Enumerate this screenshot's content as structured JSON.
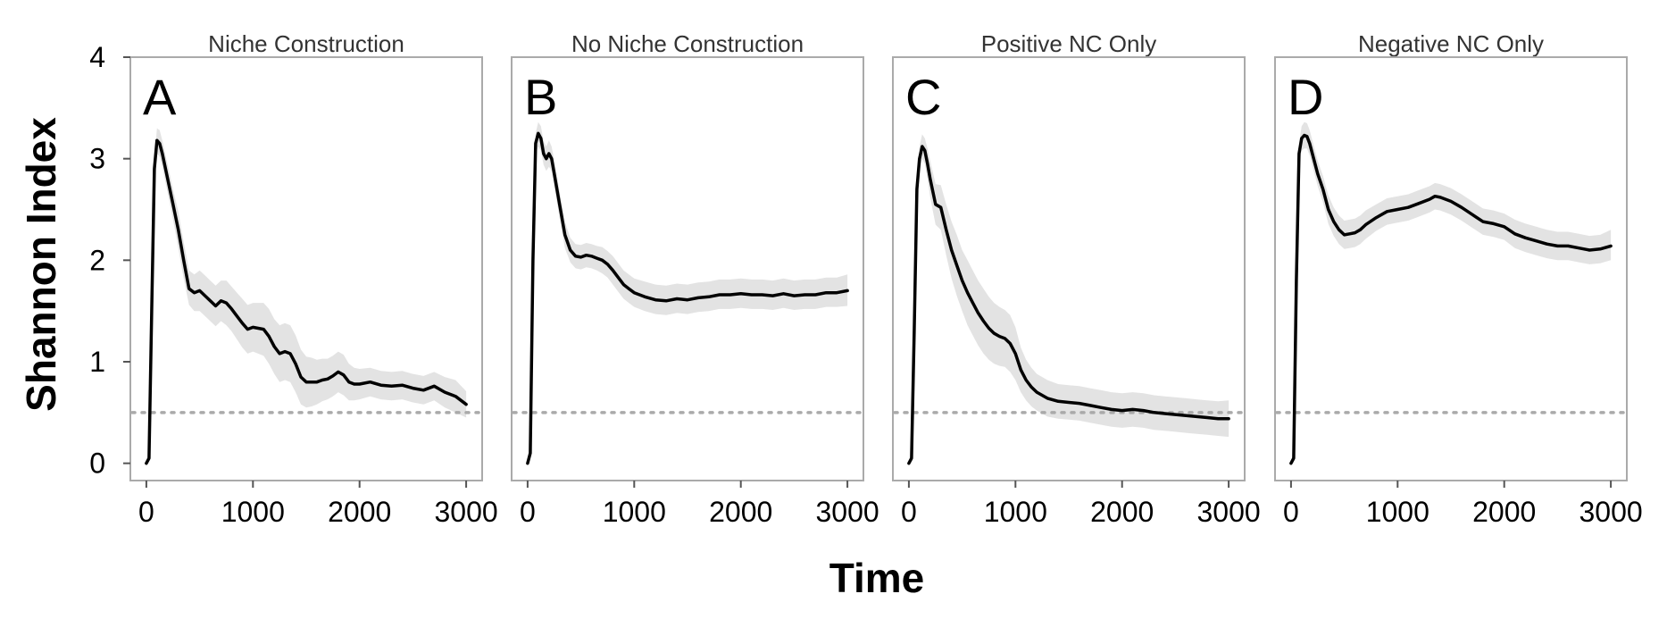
{
  "chart_data": {
    "type": "line",
    "xlabel": "Time",
    "ylabel": "Shannon Index",
    "xlim": [
      -150,
      3150
    ],
    "ylim": [
      -0.17,
      4.0
    ],
    "xticks": [
      0,
      1000,
      2000,
      3000
    ],
    "yticks": [
      0,
      1,
      2,
      3,
      4
    ],
    "reference_line_y": 0.5,
    "band_color": "#e3e3e3",
    "line_color": "#000000",
    "panels": [
      {
        "letter": "A",
        "title": "Niche Construction",
        "show_yticks": true,
        "series": {
          "x": [
            0,
            25,
            50,
            75,
            100,
            125,
            150,
            200,
            250,
            300,
            350,
            400,
            450,
            500,
            550,
            600,
            650,
            700,
            750,
            800,
            850,
            900,
            950,
            1000,
            1100,
            1150,
            1200,
            1250,
            1300,
            1350,
            1400,
            1450,
            1500,
            1550,
            1600,
            1650,
            1700,
            1750,
            1800,
            1850,
            1900,
            1950,
            2000,
            2100,
            2200,
            2300,
            2400,
            2500,
            2600,
            2700,
            2800,
            2900,
            3000
          ],
          "mean": [
            0.0,
            0.05,
            1.5,
            2.9,
            3.18,
            3.15,
            3.05,
            2.8,
            2.55,
            2.3,
            2.0,
            1.72,
            1.68,
            1.7,
            1.65,
            1.6,
            1.55,
            1.6,
            1.58,
            1.52,
            1.45,
            1.38,
            1.32,
            1.34,
            1.32,
            1.25,
            1.15,
            1.08,
            1.1,
            1.08,
            0.98,
            0.85,
            0.8,
            0.8,
            0.8,
            0.82,
            0.83,
            0.86,
            0.9,
            0.87,
            0.8,
            0.78,
            0.78,
            0.8,
            0.77,
            0.76,
            0.77,
            0.74,
            0.72,
            0.76,
            0.7,
            0.66,
            0.58
          ],
          "lower": [
            0.0,
            0.03,
            1.4,
            2.8,
            3.05,
            3.02,
            2.92,
            2.66,
            2.4,
            2.12,
            1.82,
            1.56,
            1.5,
            1.5,
            1.45,
            1.4,
            1.35,
            1.4,
            1.36,
            1.3,
            1.22,
            1.14,
            1.08,
            1.1,
            1.06,
            0.98,
            0.88,
            0.8,
            0.82,
            0.8,
            0.7,
            0.58,
            0.55,
            0.56,
            0.58,
            0.61,
            0.63,
            0.66,
            0.7,
            0.67,
            0.62,
            0.62,
            0.63,
            0.66,
            0.63,
            0.62,
            0.63,
            0.6,
            0.58,
            0.62,
            0.55,
            0.5,
            0.45
          ],
          "upper": [
            0.0,
            0.07,
            1.6,
            3.0,
            3.3,
            3.28,
            3.18,
            2.94,
            2.7,
            2.48,
            2.18,
            1.9,
            1.86,
            1.9,
            1.85,
            1.8,
            1.75,
            1.8,
            1.8,
            1.74,
            1.68,
            1.62,
            1.56,
            1.58,
            1.58,
            1.52,
            1.42,
            1.36,
            1.38,
            1.36,
            1.26,
            1.12,
            1.05,
            1.04,
            1.02,
            1.03,
            1.03,
            1.06,
            1.1,
            1.07,
            0.98,
            0.94,
            0.93,
            0.94,
            0.91,
            0.9,
            0.91,
            0.88,
            0.86,
            0.9,
            0.85,
            0.82,
            0.71
          ]
        }
      },
      {
        "letter": "B",
        "title": "No Niche Construction",
        "show_yticks": false,
        "series": {
          "x": [
            0,
            25,
            50,
            75,
            100,
            125,
            150,
            175,
            200,
            225,
            250,
            300,
            350,
            400,
            450,
            500,
            550,
            600,
            650,
            700,
            750,
            800,
            850,
            900,
            950,
            1000,
            1100,
            1200,
            1300,
            1400,
            1500,
            1600,
            1700,
            1800,
            1900,
            2000,
            2100,
            2200,
            2300,
            2400,
            2500,
            2600,
            2700,
            2800,
            2900,
            3000
          ],
          "mean": [
            0.0,
            0.1,
            2.0,
            3.15,
            3.25,
            3.2,
            3.05,
            3.0,
            3.05,
            3.0,
            2.85,
            2.55,
            2.25,
            2.1,
            2.04,
            2.03,
            2.05,
            2.04,
            2.02,
            2.0,
            1.96,
            1.9,
            1.83,
            1.76,
            1.72,
            1.68,
            1.64,
            1.61,
            1.6,
            1.62,
            1.61,
            1.63,
            1.64,
            1.66,
            1.66,
            1.67,
            1.66,
            1.66,
            1.65,
            1.67,
            1.65,
            1.66,
            1.66,
            1.68,
            1.68,
            1.7
          ],
          "lower": [
            0.0,
            0.08,
            1.9,
            3.05,
            3.12,
            3.08,
            2.94,
            2.88,
            2.92,
            2.88,
            2.72,
            2.42,
            2.12,
            1.98,
            1.92,
            1.91,
            1.93,
            1.92,
            1.9,
            1.87,
            1.83,
            1.76,
            1.69,
            1.62,
            1.58,
            1.54,
            1.5,
            1.47,
            1.46,
            1.48,
            1.47,
            1.49,
            1.5,
            1.52,
            1.52,
            1.53,
            1.52,
            1.52,
            1.51,
            1.53,
            1.51,
            1.52,
            1.52,
            1.54,
            1.54,
            1.55
          ],
          "upper": [
            0.0,
            0.12,
            2.1,
            3.25,
            3.36,
            3.32,
            3.17,
            3.12,
            3.18,
            3.12,
            2.98,
            2.68,
            2.38,
            2.22,
            2.16,
            2.15,
            2.17,
            2.16,
            2.14,
            2.13,
            2.09,
            2.04,
            1.97,
            1.9,
            1.86,
            1.82,
            1.79,
            1.76,
            1.75,
            1.77,
            1.76,
            1.78,
            1.79,
            1.81,
            1.81,
            1.82,
            1.81,
            1.81,
            1.8,
            1.82,
            1.8,
            1.81,
            1.81,
            1.83,
            1.83,
            1.86
          ]
        }
      },
      {
        "letter": "C",
        "title": "Positive NC Only",
        "show_yticks": false,
        "series": {
          "x": [
            0,
            25,
            50,
            75,
            100,
            125,
            150,
            175,
            200,
            250,
            300,
            350,
            400,
            450,
            500,
            550,
            600,
            650,
            700,
            750,
            800,
            850,
            900,
            950,
            1000,
            1050,
            1100,
            1150,
            1200,
            1300,
            1400,
            1500,
            1600,
            1700,
            1800,
            1900,
            2000,
            2100,
            2200,
            2300,
            2400,
            2500,
            2600,
            2700,
            2800,
            2900,
            3000
          ],
          "mean": [
            0.0,
            0.05,
            1.3,
            2.7,
            3.0,
            3.12,
            3.08,
            2.95,
            2.8,
            2.55,
            2.52,
            2.3,
            2.1,
            1.95,
            1.8,
            1.68,
            1.58,
            1.48,
            1.4,
            1.33,
            1.28,
            1.25,
            1.23,
            1.18,
            1.08,
            0.92,
            0.82,
            0.75,
            0.7,
            0.64,
            0.61,
            0.6,
            0.59,
            0.57,
            0.55,
            0.53,
            0.52,
            0.53,
            0.52,
            0.5,
            0.49,
            0.48,
            0.47,
            0.46,
            0.45,
            0.44,
            0.44
          ],
          "lower": [
            0.0,
            0.03,
            1.2,
            2.6,
            2.88,
            3.0,
            2.95,
            2.8,
            2.62,
            2.35,
            2.3,
            2.05,
            1.82,
            1.65,
            1.5,
            1.36,
            1.26,
            1.16,
            1.08,
            1.02,
            0.98,
            0.96,
            0.95,
            0.9,
            0.82,
            0.7,
            0.62,
            0.56,
            0.52,
            0.46,
            0.44,
            0.43,
            0.42,
            0.4,
            0.38,
            0.36,
            0.35,
            0.36,
            0.35,
            0.33,
            0.32,
            0.31,
            0.3,
            0.29,
            0.28,
            0.27,
            0.26
          ],
          "upper": [
            0.0,
            0.07,
            1.4,
            2.8,
            3.12,
            3.24,
            3.2,
            3.1,
            2.98,
            2.75,
            2.74,
            2.55,
            2.38,
            2.25,
            2.1,
            2.0,
            1.9,
            1.8,
            1.72,
            1.64,
            1.58,
            1.54,
            1.51,
            1.46,
            1.34,
            1.14,
            1.02,
            0.94,
            0.88,
            0.82,
            0.78,
            0.77,
            0.76,
            0.74,
            0.72,
            0.7,
            0.69,
            0.7,
            0.69,
            0.67,
            0.66,
            0.65,
            0.64,
            0.63,
            0.62,
            0.61,
            0.62
          ]
        }
      },
      {
        "letter": "D",
        "title": "Negative NC Only",
        "show_yticks": false,
        "series": {
          "x": [
            0,
            25,
            50,
            75,
            100,
            125,
            150,
            175,
            200,
            250,
            300,
            350,
            400,
            450,
            500,
            550,
            600,
            650,
            700,
            800,
            900,
            1000,
            1100,
            1200,
            1300,
            1350,
            1400,
            1500,
            1600,
            1700,
            1800,
            1900,
            2000,
            2100,
            2200,
            2300,
            2400,
            2500,
            2600,
            2700,
            2800,
            2900,
            3000
          ],
          "mean": [
            0.0,
            0.05,
            1.8,
            3.05,
            3.2,
            3.23,
            3.22,
            3.15,
            3.05,
            2.85,
            2.7,
            2.5,
            2.38,
            2.3,
            2.25,
            2.26,
            2.27,
            2.3,
            2.35,
            2.42,
            2.48,
            2.5,
            2.52,
            2.56,
            2.6,
            2.63,
            2.62,
            2.58,
            2.52,
            2.45,
            2.38,
            2.36,
            2.33,
            2.26,
            2.22,
            2.19,
            2.16,
            2.14,
            2.14,
            2.12,
            2.1,
            2.11,
            2.14
          ],
          "lower": [
            0.0,
            0.03,
            1.7,
            2.95,
            3.08,
            3.1,
            3.1,
            3.03,
            2.93,
            2.73,
            2.57,
            2.36,
            2.24,
            2.16,
            2.11,
            2.12,
            2.13,
            2.16,
            2.21,
            2.29,
            2.35,
            2.37,
            2.39,
            2.43,
            2.47,
            2.5,
            2.49,
            2.45,
            2.39,
            2.32,
            2.25,
            2.23,
            2.2,
            2.12,
            2.08,
            2.05,
            2.02,
            2.0,
            2.0,
            1.98,
            1.96,
            1.97,
            2.0
          ],
          "upper": [
            0.0,
            0.07,
            1.9,
            3.15,
            3.32,
            3.36,
            3.35,
            3.28,
            3.18,
            2.98,
            2.83,
            2.64,
            2.52,
            2.44,
            2.39,
            2.4,
            2.41,
            2.44,
            2.49,
            2.55,
            2.61,
            2.63,
            2.65,
            2.69,
            2.73,
            2.76,
            2.75,
            2.71,
            2.65,
            2.58,
            2.51,
            2.49,
            2.46,
            2.4,
            2.36,
            2.33,
            2.3,
            2.28,
            2.28,
            2.26,
            2.24,
            2.25,
            2.3
          ]
        }
      }
    ]
  }
}
